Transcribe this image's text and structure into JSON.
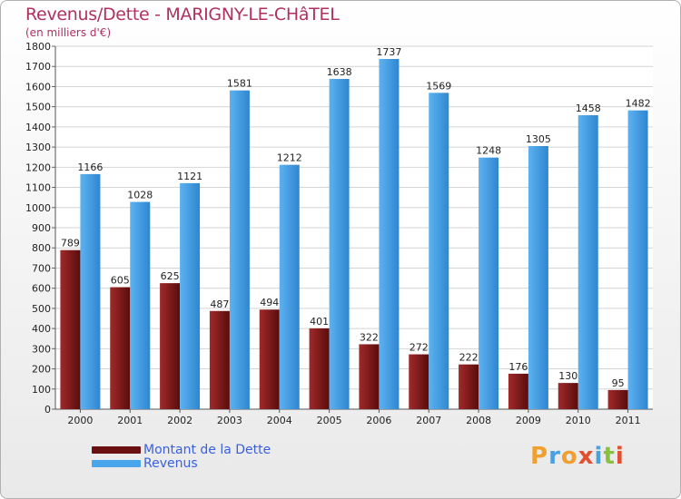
{
  "header": {
    "title": "Revenus/Dette - MARIGNY-LE-CHâTEL",
    "subtitle": "(en milliers d'€)"
  },
  "legend": {
    "debt_label": "Montant de la Dette",
    "revenue_label": "Revenus"
  },
  "logo": {
    "text": "Proxiti",
    "letters": [
      "P",
      "r",
      "o",
      "x",
      "i",
      "t",
      "i"
    ],
    "letter_colors": [
      "#f0a030",
      "#4aa0e0",
      "#f0a030",
      "#e05030",
      "#4aa0e0",
      "#88c040",
      "#e05030"
    ]
  },
  "colors": {
    "debt": "#8b1a1a",
    "revenue": "#4aa6ec",
    "title": "#b03060",
    "legend_text": "#3a5fe0"
  },
  "chart_data": {
    "type": "bar",
    "title": "Revenus/Dette - MARIGNY-LE-CHâTEL",
    "ylabel": "(en milliers d'€)",
    "xlabel": "",
    "ylim": [
      0,
      1800
    ],
    "ytick_step": 100,
    "grid": true,
    "legend_position": "bottom-left",
    "categories": [
      "2000",
      "2001",
      "2002",
      "2003",
      "2004",
      "2005",
      "2006",
      "2007",
      "2008",
      "2009",
      "2010",
      "2011"
    ],
    "series": [
      {
        "name": "Montant de la Dette",
        "values": [
          789,
          605,
          625,
          487,
          494,
          401,
          322,
          272,
          222,
          176,
          130,
          95
        ]
      },
      {
        "name": "Revenus",
        "values": [
          1166,
          1028,
          1121,
          1581,
          1212,
          1638,
          1737,
          1569,
          1248,
          1305,
          1458,
          1482
        ]
      }
    ]
  }
}
